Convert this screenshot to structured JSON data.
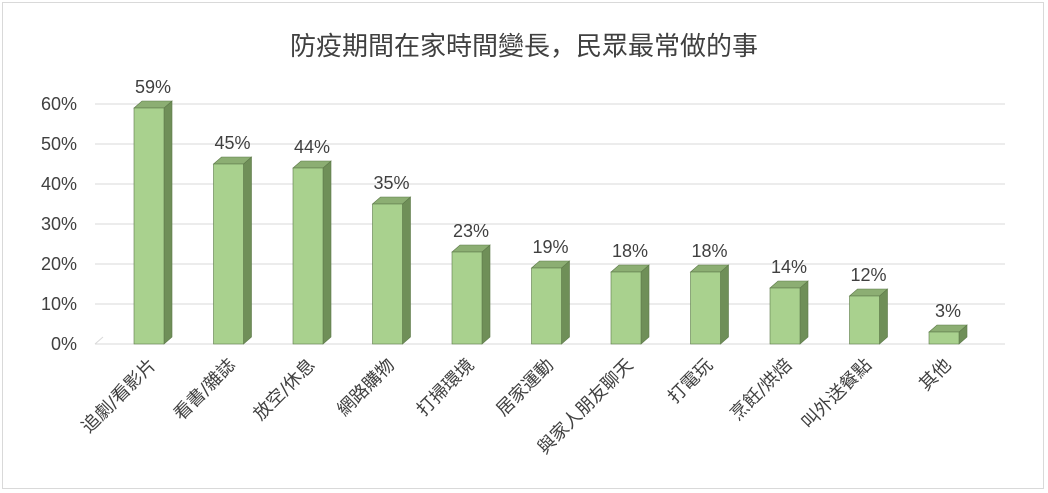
{
  "chart_data": {
    "type": "bar",
    "title": "防疫期間在家時間變長，民眾最常做的事",
    "categories": [
      "追劇/看影片",
      "看書/雜誌",
      "放空/休息",
      "網路購物",
      "打掃環境",
      "居家運動",
      "與家人朋友聊天",
      "打電玩",
      "烹飪/烘焙",
      "叫外送餐點",
      "其他"
    ],
    "values": [
      59,
      45,
      44,
      35,
      23,
      19,
      18,
      18,
      14,
      12,
      3
    ],
    "value_labels": [
      "59%",
      "45%",
      "44%",
      "35%",
      "23%",
      "19%",
      "18%",
      "18%",
      "14%",
      "12%",
      "3%"
    ],
    "ylim": [
      0,
      60
    ],
    "yticks": [
      0,
      10,
      20,
      30,
      40,
      50,
      60
    ],
    "ytick_labels": [
      "0%",
      "10%",
      "20%",
      "30%",
      "40%",
      "50%",
      "60%"
    ],
    "xlabel": "",
    "ylabel": "",
    "grid": true,
    "bar_style": "3d",
    "colors": {
      "bar_front": "#a9d18e",
      "bar_side": "#6f8f58",
      "bar_top": "#8cae73",
      "bar_outline": "#5e7a4a",
      "gridline": "#d9d9d9",
      "text": "#404040"
    }
  }
}
